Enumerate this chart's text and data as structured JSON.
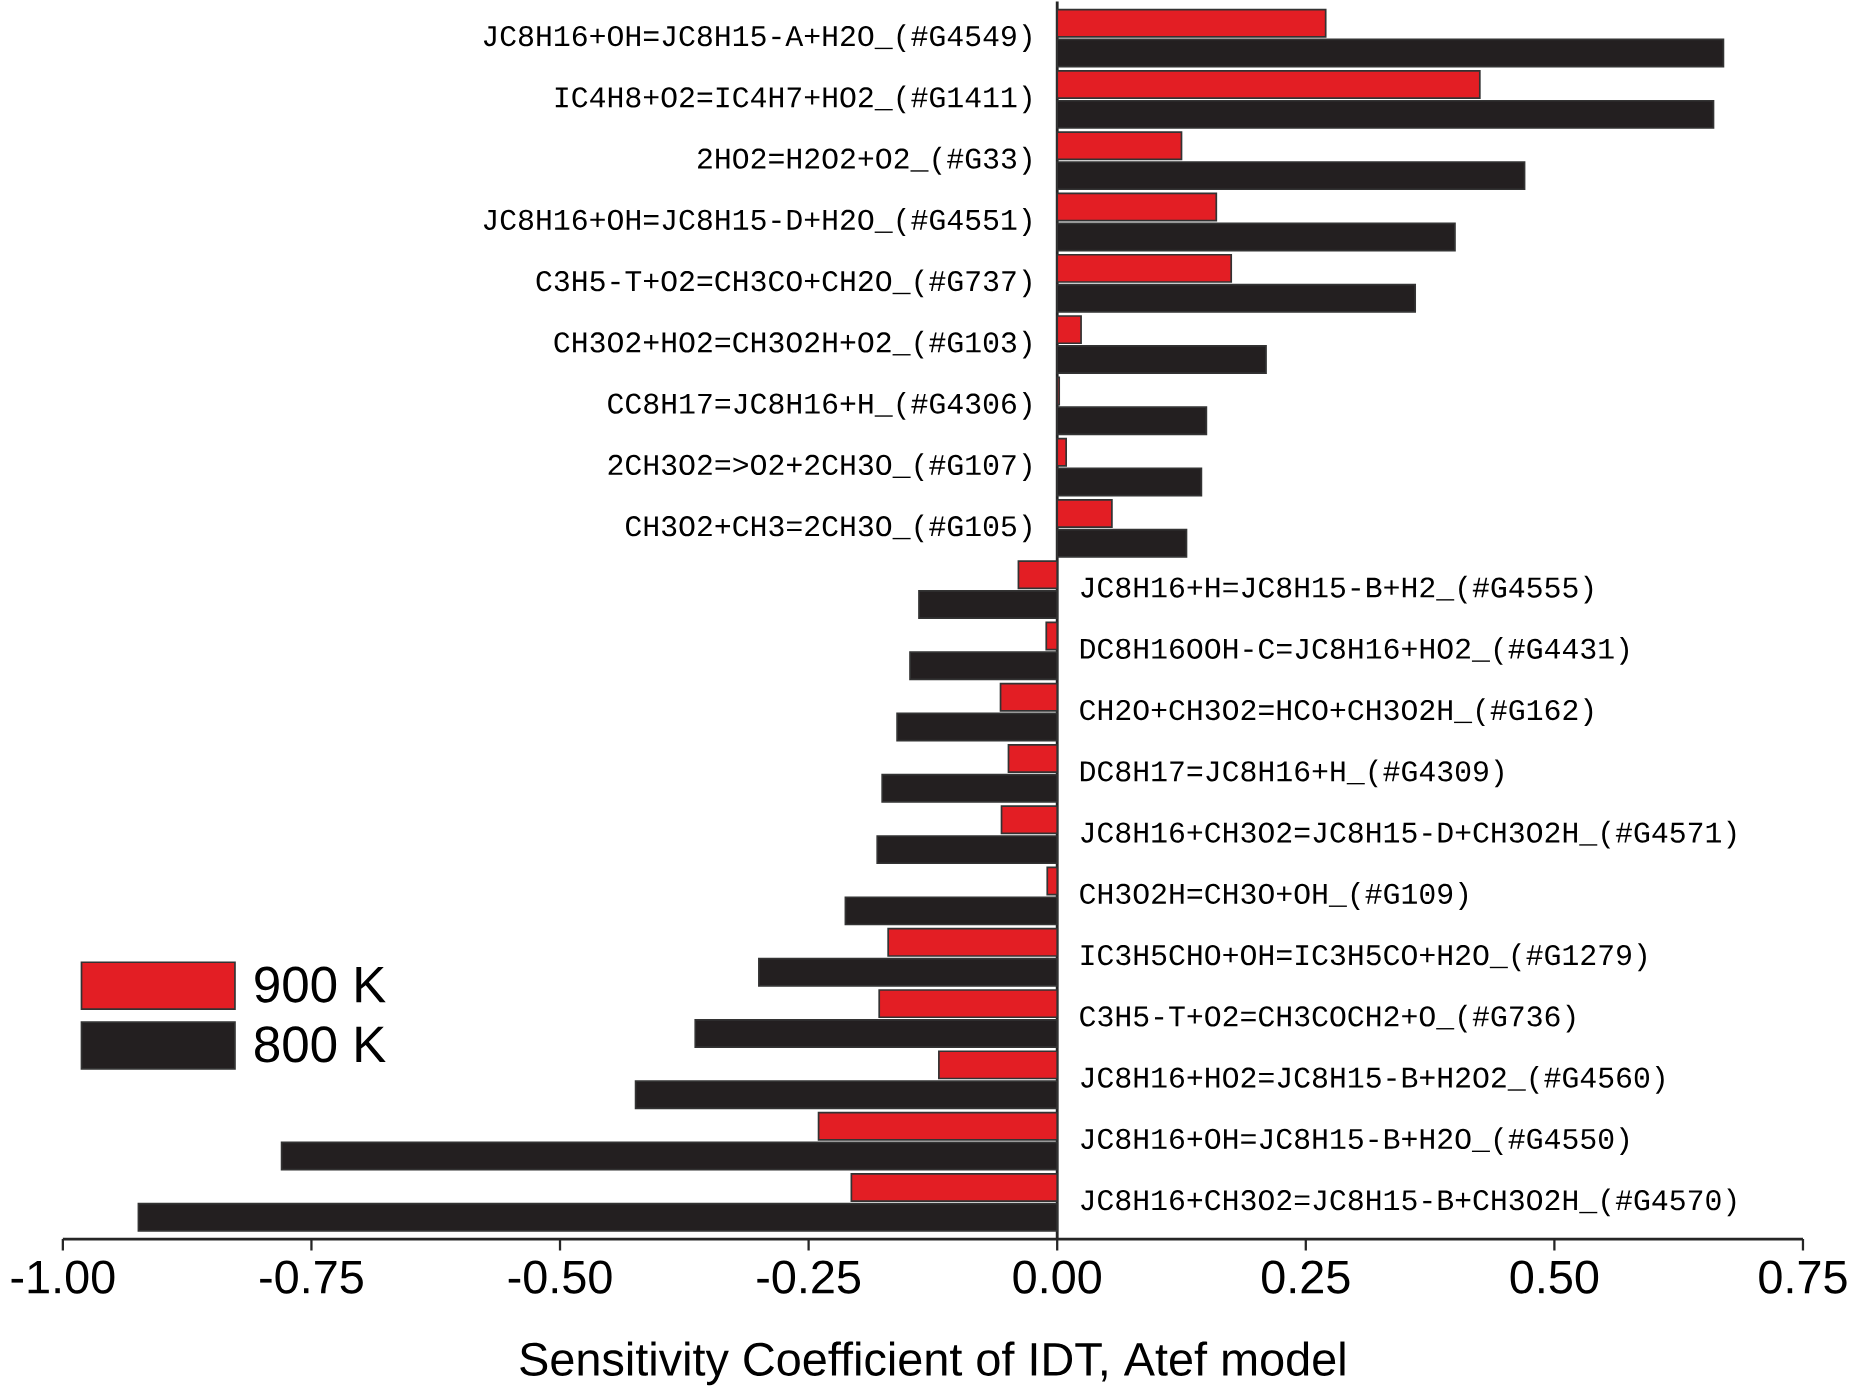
{
  "chart_data": {
    "type": "bar",
    "orientation": "horizontal",
    "xlabel": "Sensitivity Coefficient of IDT, Atef model",
    "categories": [
      "JC8H16+OH=JC8H15-A+H2O_(#G4549)",
      "IC4H8+O2=IC4H7+HO2_(#G1411)",
      "2HO2=H2O2+O2_(#G33)",
      "JC8H16+OH=JC8H15-D+H2O_(#G4551)",
      "C3H5-T+O2=CH3CO+CH2O_(#G737)",
      "CH3O2+HO2=CH3O2H+O2_(#G103)",
      "CC8H17=JC8H16+H_(#G4306)",
      "2CH3O2=>O2+2CH3O_(#G107)",
      "CH3O2+CH3=2CH3O_(#G105)",
      "JC8H16+H=JC8H15-B+H2_(#G4555)",
      "DC8H16OOH-C=JC8H16+HO2_(#G4431)",
      "CH2O+CH3O2=HCO+CH3O2H_(#G162)",
      "DC8H17=JC8H16+H_(#G4309)",
      "JC8H16+CH3O2=JC8H15-D+CH3O2H_(#G4571)",
      "CH3O2H=CH3O+OH_(#G109)",
      "IC3H5CHO+OH=IC3H5CO+H2O_(#G1279)",
      "C3H5-T+O2=CH3COCH2+O_(#G736)",
      "JC8H16+HO2=JC8H15-B+H2O2_(#G4560)",
      "JC8H16+OH=JC8H15-B+H2O_(#G4550)",
      "JC8H16+CH3O2=JC8H15-B+CH3O2H_(#G4570)"
    ],
    "series": [
      {
        "name": "900 K",
        "color": "#e31e24",
        "values": [
          0.27,
          0.425,
          0.125,
          0.16,
          0.175,
          0.024,
          0.002,
          0.009,
          0.055,
          -0.039,
          -0.011,
          -0.057,
          -0.049,
          -0.056,
          -0.01,
          -0.17,
          -0.179,
          -0.119,
          -0.24,
          -0.207
        ]
      },
      {
        "name": "800 K",
        "color": "#231f20",
        "values": [
          0.67,
          0.66,
          0.47,
          0.4,
          0.36,
          0.21,
          0.15,
          0.145,
          0.13,
          -0.139,
          -0.148,
          -0.161,
          -0.176,
          -0.181,
          -0.213,
          -0.3,
          -0.364,
          -0.424,
          -0.78,
          -0.924
        ]
      }
    ],
    "xlim": [
      -1,
      0.75
    ],
    "xticks": [
      {
        "value": -1,
        "label": "-1.00"
      },
      {
        "value": -0.75,
        "label": "-0.75"
      },
      {
        "value": -0.5,
        "label": "-0.50"
      },
      {
        "value": -0.25,
        "label": "-0.25"
      },
      {
        "value": 0,
        "label": "0.00"
      },
      {
        "value": 0.25,
        "label": "0.25"
      },
      {
        "value": 0.5,
        "label": "0.50"
      },
      {
        "value": 0.75,
        "label": "0.75"
      }
    ],
    "legend": "bottom left",
    "grid": false
  }
}
